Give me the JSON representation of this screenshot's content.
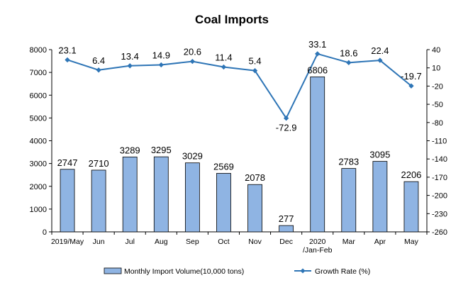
{
  "chart_data": {
    "type": "bar",
    "title": "Coal Imports",
    "categories": [
      "2019/May",
      "Jun",
      "Jul",
      "Aug",
      "Sep",
      "Oct",
      "Nov",
      "Dec",
      "2020\n/Jan-Feb",
      "Mar",
      "Apr",
      "May"
    ],
    "series": [
      {
        "name": "Monthly Import Volume(10,000 tons)",
        "type": "bar",
        "axis": "left",
        "color": "#8fb4e3",
        "values": [
          2747,
          2710,
          3289,
          3295,
          3029,
          2569,
          2078,
          277,
          6806,
          2783,
          3095,
          2206
        ],
        "labels": [
          "2747",
          "2710",
          "3289",
          "3295",
          "3029",
          "2569",
          "2078",
          "277",
          "6806",
          "2783",
          "3095",
          "2206"
        ]
      },
      {
        "name": "Growth Rate (%)",
        "type": "line",
        "axis": "right",
        "color": "#2e75b6",
        "values": [
          23.1,
          6.4,
          13.4,
          14.9,
          20.6,
          11.4,
          5.4,
          -72.9,
          33.1,
          18.6,
          22.4,
          -19.7
        ],
        "labels": [
          "23.1",
          "6.4",
          "13.4",
          "14.9",
          "20.6",
          "11.4",
          "5.4",
          "-72.9",
          "33.1",
          "18.6",
          "22.4",
          "-19.7"
        ]
      }
    ],
    "y_left": {
      "range": [
        0,
        8000
      ],
      "ticks": [
        "0",
        "1000",
        "2000",
        "3000",
        "4000",
        "5000",
        "6000",
        "7000",
        "8000"
      ]
    },
    "y_right": {
      "range": [
        -260,
        40
      ],
      "ticks": [
        "40",
        "10",
        "-20",
        "-50",
        "-80",
        "-110",
        "-140",
        "-170",
        "-200",
        "-230",
        "-260"
      ]
    },
    "grid": false,
    "legend": "bottom"
  }
}
